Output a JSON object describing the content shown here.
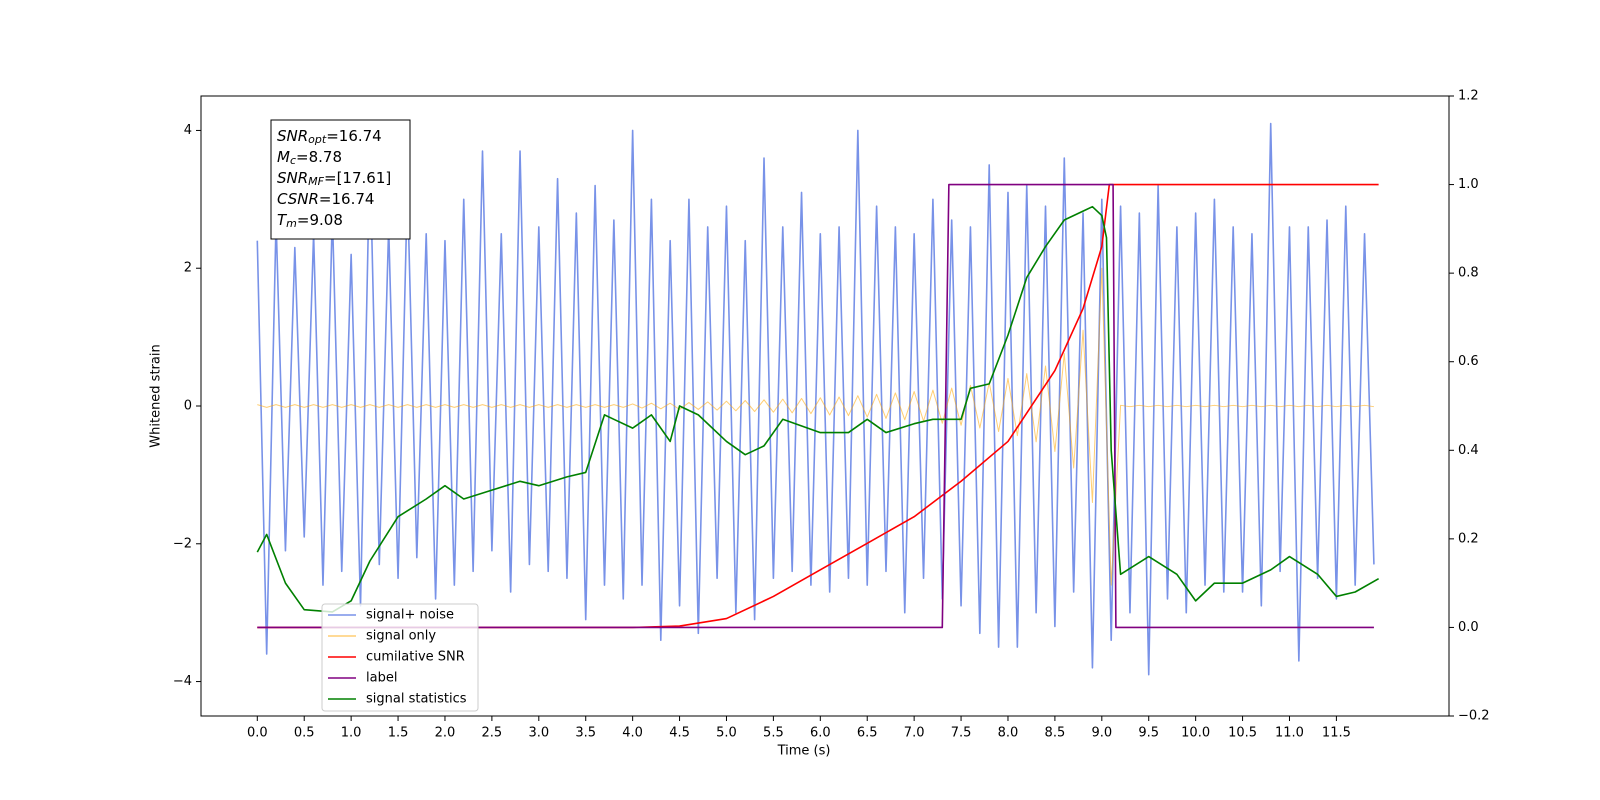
{
  "chart_data": {
    "type": "line",
    "xlabel": "Time (s)",
    "ylabel": "Whitened strain",
    "xlim": [
      -0.6,
      12.7
    ],
    "ylim": [
      -4.5,
      4.5
    ],
    "y2lim": [
      -0.2,
      1.2
    ],
    "xticks": [
      {
        "value": 0,
        "label": "0.0"
      },
      0.5,
      {
        "value": 1,
        "label": "1.0"
      },
      1.5,
      {
        "value": 2,
        "label": "2.0"
      },
      2.5,
      {
        "value": 3,
        "label": "3.0"
      },
      3.5,
      {
        "value": 4,
        "label": "4.0"
      },
      4.5,
      {
        "value": 5,
        "label": "5.0"
      },
      5.5,
      {
        "value": 6,
        "label": "6.0"
      },
      6.5,
      {
        "value": 7,
        "label": "7.0"
      },
      7.5,
      {
        "value": 8,
        "label": "8.0"
      },
      8.5,
      {
        "value": 9,
        "label": "9.0"
      },
      9.5,
      {
        "value": 10,
        "label": "10.0"
      },
      10.5,
      {
        "value": 11,
        "label": "11.0"
      },
      11.5
    ],
    "yticks": [
      {
        "value": -4,
        "label": "−4"
      },
      {
        "value": -2,
        "label": "−2"
      },
      0,
      2,
      4
    ],
    "y2ticks": [
      {
        "value": -0.2,
        "label": "−0.2"
      },
      {
        "value": 0,
        "label": "0.0"
      },
      0.2,
      0.4,
      0.6,
      0.8,
      {
        "value": 1,
        "label": "1.0"
      },
      1.2
    ],
    "legend_loc": "lower left",
    "annotation": [
      {
        "name": "SNR",
        "subscript": "opt",
        "text": "=16.74"
      },
      {
        "name": "M",
        "subscript": "c",
        "text": "=8.78"
      },
      {
        "name": "SNR",
        "subscript": "MF",
        "text": "=[17.61]"
      },
      {
        "name": "CSNR",
        "subscript": "",
        "text": "=16.74"
      },
      {
        "name": "T",
        "subscript": "m",
        "text": "=9.08"
      }
    ],
    "series": [
      {
        "name": "signal+ noise",
        "color": "#7892e8",
        "axis": "y",
        "x": [
          0.0,
          0.1,
          0.2,
          0.3,
          0.4,
          0.5,
          0.6,
          0.7,
          0.8,
          0.9,
          1.0,
          1.1,
          1.2,
          1.3,
          1.4,
          1.5,
          1.6,
          1.7,
          1.8,
          1.9,
          2.0,
          2.1,
          2.2,
          2.3,
          2.4,
          2.5,
          2.6,
          2.7,
          2.8,
          2.9,
          3.0,
          3.1,
          3.2,
          3.3,
          3.4,
          3.5,
          3.6,
          3.7,
          3.8,
          3.9,
          4.0,
          4.1,
          4.2,
          4.3,
          4.4,
          4.5,
          4.6,
          4.7,
          4.8,
          4.9,
          5.0,
          5.1,
          5.2,
          5.3,
          5.4,
          5.5,
          5.6,
          5.7,
          5.8,
          5.9,
          6.0,
          6.1,
          6.2,
          6.3,
          6.4,
          6.5,
          6.6,
          6.7,
          6.8,
          6.9,
          7.0,
          7.1,
          7.2,
          7.3,
          7.4,
          7.5,
          7.6,
          7.7,
          7.8,
          7.9,
          8.0,
          8.1,
          8.2,
          8.3,
          8.4,
          8.5,
          8.6,
          8.7,
          8.8,
          8.9,
          9.0,
          9.1,
          9.2,
          9.3,
          9.4,
          9.5,
          9.6,
          9.7,
          9.8,
          9.9,
          10.0,
          10.1,
          10.2,
          10.3,
          10.4,
          10.5,
          10.6,
          10.7,
          10.8,
          10.9,
          11.0,
          11.1,
          11.2,
          11.3,
          11.4,
          11.5,
          11.6,
          11.7,
          11.8,
          11.9
        ],
        "values": [
          2.4,
          -3.6,
          2.7,
          -2.1,
          2.3,
          -1.9,
          2.5,
          -2.6,
          2.8,
          -2.4,
          2.2,
          -2.9,
          3.7,
          -2.3,
          2.6,
          -2.5,
          3.2,
          -2.2,
          2.5,
          -2.8,
          2.4,
          -2.6,
          3.0,
          -2.4,
          3.7,
          -2.1,
          2.5,
          -2.7,
          3.7,
          -2.3,
          2.6,
          -2.4,
          3.3,
          -2.5,
          2.8,
          -3.1,
          3.2,
          -2.6,
          2.7,
          -2.8,
          4.0,
          -2.6,
          3.0,
          -3.4,
          2.4,
          -2.9,
          3.0,
          -3.3,
          2.6,
          -2.5,
          2.9,
          -3.0,
          2.4,
          -3.1,
          3.6,
          -2.5,
          2.6,
          -2.4,
          3.1,
          -2.6,
          2.5,
          -2.7,
          2.6,
          -2.5,
          4.0,
          -2.6,
          2.9,
          -2.4,
          2.6,
          -3.0,
          2.5,
          -2.5,
          3.0,
          -2.8,
          2.7,
          -2.9,
          2.6,
          -3.3,
          3.5,
          -3.5,
          3.1,
          -3.5,
          3.2,
          -3.0,
          2.9,
          -3.2,
          3.6,
          -2.7,
          2.8,
          -3.8,
          3.0,
          -3.4,
          2.9,
          -3.0,
          2.8,
          -3.9,
          3.2,
          -2.8,
          2.6,
          -3.0,
          2.8,
          -2.6,
          3.0,
          -2.7,
          2.6,
          -2.7,
          2.5,
          -2.9,
          4.1,
          -2.4,
          2.6,
          -3.7,
          2.6,
          -2.5,
          2.7,
          -2.8,
          2.9,
          -2.6,
          2.5,
          -2.3
        ]
      },
      {
        "name": "signal only",
        "color": "#ffa500",
        "axis": "y",
        "x": [
          0.0,
          0.1,
          0.2,
          0.3,
          0.4,
          0.5,
          0.6,
          0.7,
          0.8,
          0.9,
          1.0,
          1.1,
          1.2,
          1.3,
          1.4,
          1.5,
          1.6,
          1.7,
          1.8,
          1.9,
          2.0,
          2.1,
          2.2,
          2.3,
          2.4,
          2.5,
          2.6,
          2.7,
          2.8,
          2.9,
          3.0,
          3.1,
          3.2,
          3.3,
          3.4,
          3.5,
          3.6,
          3.7,
          3.8,
          3.9,
          4.0,
          4.1,
          4.2,
          4.3,
          4.4,
          4.5,
          4.6,
          4.7,
          4.8,
          4.9,
          5.0,
          5.1,
          5.2,
          5.3,
          5.4,
          5.5,
          5.6,
          5.7,
          5.8,
          5.9,
          6.0,
          6.1,
          6.2,
          6.3,
          6.4,
          6.5,
          6.6,
          6.7,
          6.8,
          6.9,
          7.0,
          7.1,
          7.2,
          7.3,
          7.4,
          7.5,
          7.6,
          7.7,
          7.8,
          7.9,
          8.0,
          8.1,
          8.2,
          8.3,
          8.4,
          8.5,
          8.6,
          8.7,
          8.8,
          8.9,
          9.0,
          9.1,
          9.2,
          9.3,
          9.4,
          9.5,
          9.6,
          9.7,
          9.8,
          9.9,
          10.0,
          10.1,
          10.2,
          10.3,
          10.4,
          10.5,
          10.6,
          10.7,
          10.8,
          10.9,
          11.0,
          11.1,
          11.2,
          11.3,
          11.4,
          11.5,
          11.6,
          11.7,
          11.8,
          11.9
        ],
        "values": [
          0.02,
          -0.02,
          0.02,
          -0.02,
          0.02,
          -0.02,
          0.02,
          -0.02,
          0.02,
          -0.02,
          0.02,
          -0.02,
          0.02,
          -0.02,
          0.02,
          -0.02,
          0.02,
          -0.02,
          0.02,
          -0.02,
          0.02,
          -0.02,
          0.02,
          -0.02,
          0.02,
          -0.02,
          0.02,
          -0.02,
          0.02,
          -0.02,
          0.02,
          -0.02,
          0.02,
          -0.02,
          0.02,
          -0.02,
          0.02,
          -0.02,
          0.02,
          -0.02,
          0.03,
          -0.03,
          0.04,
          -0.04,
          0.04,
          -0.05,
          0.05,
          -0.05,
          0.06,
          -0.06,
          0.07,
          -0.07,
          0.08,
          -0.08,
          0.09,
          -0.09,
          0.1,
          -0.1,
          0.11,
          -0.11,
          0.12,
          -0.13,
          0.13,
          -0.14,
          0.15,
          -0.16,
          0.17,
          -0.18,
          0.19,
          -0.2,
          0.21,
          -0.22,
          0.23,
          -0.25,
          0.26,
          -0.28,
          0.3,
          -0.32,
          0.34,
          -0.37,
          0.4,
          -0.43,
          0.47,
          -0.52,
          0.58,
          -0.66,
          0.76,
          -0.9,
          1.1,
          -1.4,
          2.0,
          -2.6,
          0.01,
          -0.01,
          0.01,
          -0.01,
          0.01,
          -0.01,
          0.01,
          -0.01,
          0.01,
          -0.01,
          0.01,
          -0.01,
          0.01,
          -0.01,
          0.01,
          -0.01,
          0.01,
          -0.01,
          0.01,
          -0.01,
          0.01,
          -0.01,
          0.01,
          -0.01,
          0.01,
          -0.01,
          0.01,
          -0.01
        ]
      },
      {
        "name": "cumilative SNR",
        "color": "#ff0000",
        "axis": "y2",
        "x": [
          0.0,
          4.0,
          4.5,
          5.0,
          5.5,
          6.0,
          6.5,
          7.0,
          7.5,
          8.0,
          8.5,
          8.8,
          9.0,
          9.08,
          9.5,
          10.0,
          11.0,
          11.95
        ],
        "values": [
          0,
          0,
          0.003,
          0.02,
          0.07,
          0.13,
          0.19,
          0.25,
          0.33,
          0.42,
          0.58,
          0.72,
          0.86,
          1.0,
          1.0,
          1.0,
          1.0,
          1.0
        ]
      },
      {
        "name": "label",
        "color": "#800080",
        "axis": "y2",
        "x": [
          0.0,
          7.3,
          7.37,
          9.12,
          9.15,
          11.9
        ],
        "values": [
          0,
          0,
          1,
          1,
          0,
          0
        ]
      },
      {
        "name": "signal statistics",
        "color": "#008000",
        "axis": "y2",
        "x": [
          0.0,
          0.1,
          0.3,
          0.5,
          0.8,
          1.0,
          1.2,
          1.5,
          1.8,
          2.0,
          2.2,
          2.5,
          2.8,
          3.0,
          3.3,
          3.5,
          3.7,
          3.8,
          4.0,
          4.2,
          4.4,
          4.5,
          4.7,
          5.0,
          5.2,
          5.4,
          5.6,
          6.0,
          6.3,
          6.5,
          6.7,
          7.0,
          7.2,
          7.5,
          7.6,
          7.8,
          8.0,
          8.2,
          8.4,
          8.6,
          8.8,
          8.9,
          9.0,
          9.05,
          9.1,
          9.2,
          9.5,
          9.8,
          10.0,
          10.2,
          10.5,
          10.8,
          11.0,
          11.3,
          11.5,
          11.7,
          11.95
        ],
        "values": [
          0.17,
          0.21,
          0.1,
          0.04,
          0.035,
          0.06,
          0.15,
          0.25,
          0.29,
          0.32,
          0.29,
          0.31,
          0.33,
          0.32,
          0.34,
          0.35,
          0.48,
          0.47,
          0.45,
          0.48,
          0.42,
          0.5,
          0.48,
          0.42,
          0.39,
          0.41,
          0.47,
          0.44,
          0.44,
          0.47,
          0.44,
          0.46,
          0.47,
          0.47,
          0.54,
          0.55,
          0.66,
          0.79,
          0.86,
          0.92,
          0.94,
          0.95,
          0.93,
          0.88,
          0.4,
          0.12,
          0.16,
          0.12,
          0.06,
          0.1,
          0.1,
          0.13,
          0.16,
          0.12,
          0.07,
          0.08,
          0.11
        ]
      }
    ]
  }
}
